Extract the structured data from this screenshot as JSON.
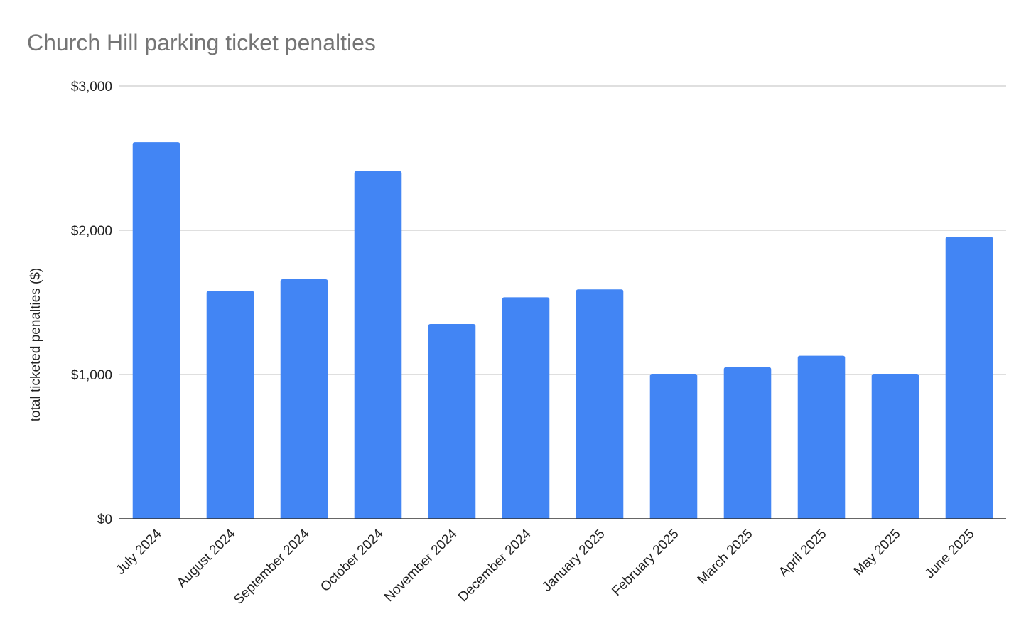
{
  "chart_data": {
    "type": "bar",
    "title": "Church Hill parking ticket penalties",
    "xlabel": "",
    "ylabel": "total ticketed penalties ($)",
    "categories": [
      "July 2024",
      "August 2024",
      "September 2024",
      "October 2024",
      "November 2024",
      "December 2024",
      "January 2025",
      "February 2025",
      "March 2025",
      "April 2025",
      "May 2025",
      "June 2025"
    ],
    "series": [
      {
        "name": "total ticketed penalties ($)",
        "values": [
          2610,
          1580,
          1660,
          2410,
          1350,
          1535,
          1590,
          1005,
          1050,
          1130,
          1005,
          1955
        ]
      }
    ],
    "ylim": [
      0,
      3000
    ],
    "yticks": [
      0,
      1000,
      2000,
      3000
    ],
    "ytick_labels": [
      "$0",
      "$1,000",
      "$2,000",
      "$3,000"
    ],
    "grid": true,
    "legend": "none",
    "bar_color": "#4285f4"
  }
}
